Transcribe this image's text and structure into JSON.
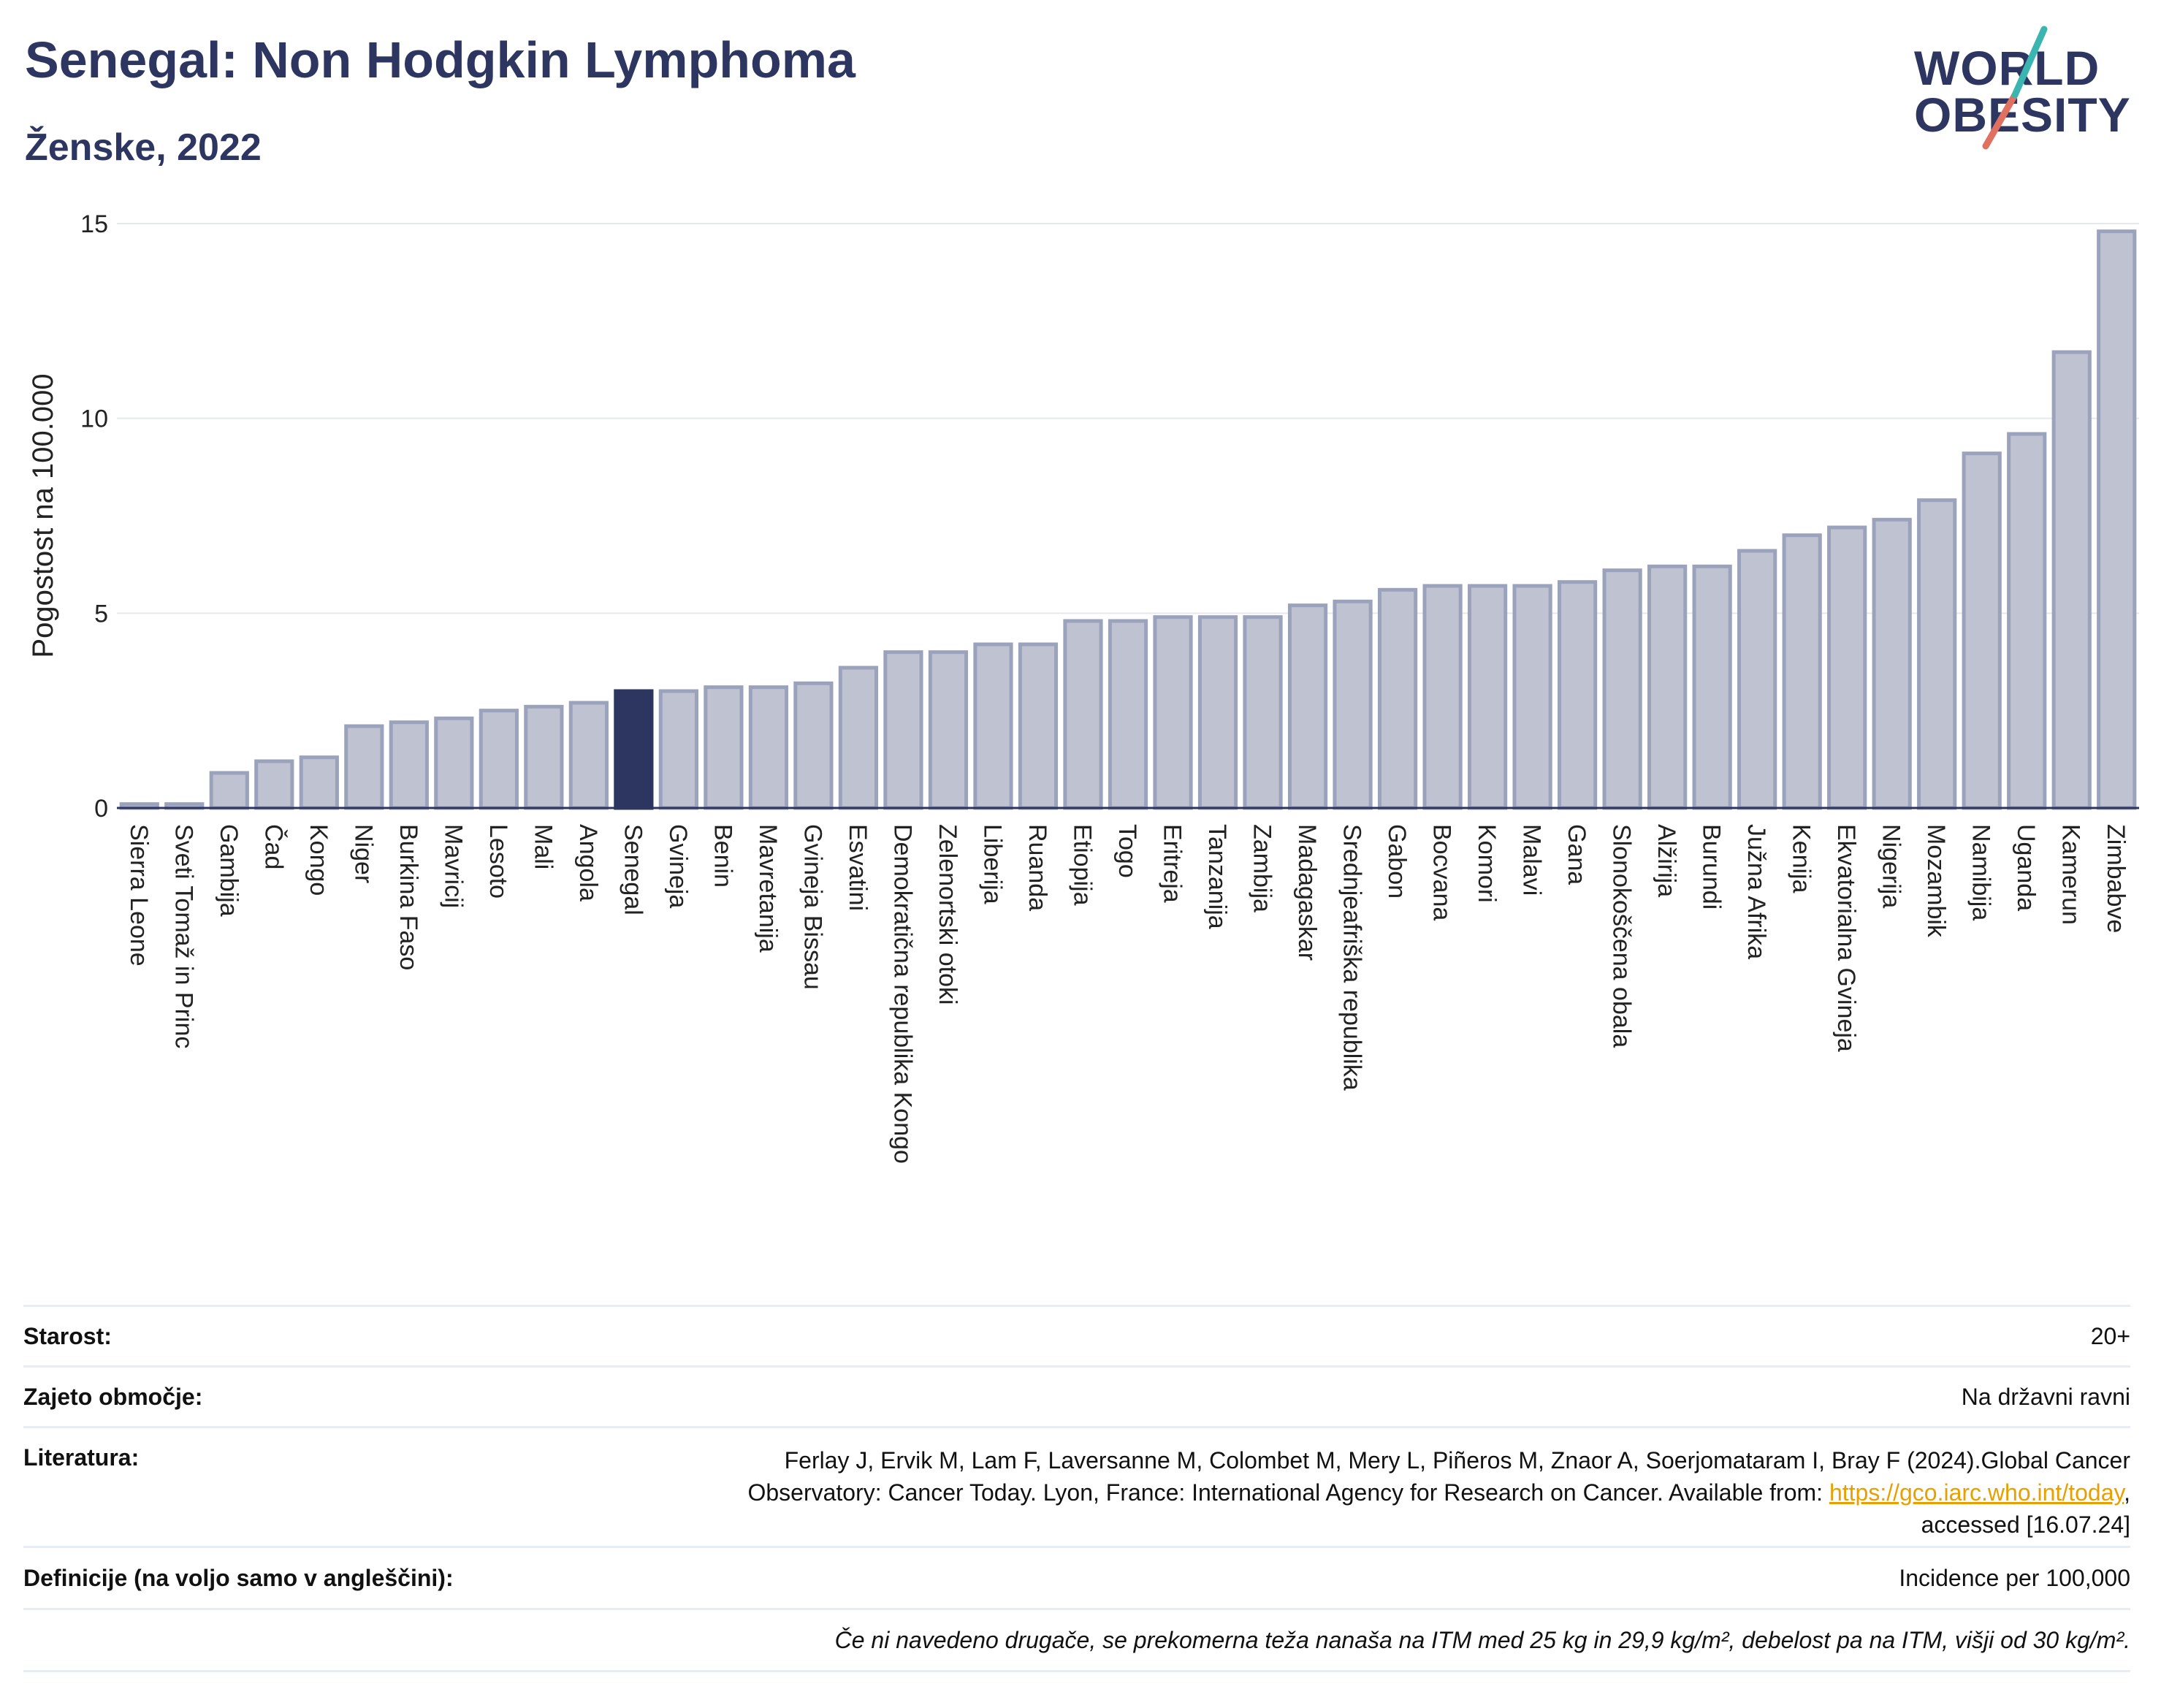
{
  "header": {
    "title": "Senegal: Non Hodgkin Lymphoma",
    "subtitle": "Ženske, 2022"
  },
  "logo": {
    "line1": "WORLD",
    "line2": "OBESITY"
  },
  "colors": {
    "bar": "#bfc3d1",
    "bar_stroke": "#9ba2bb",
    "highlight": "#2d3561",
    "title": "#2d3561"
  },
  "chart_data": {
    "type": "bar",
    "ylabel": "Pogostost na 100.000",
    "ylim": [
      0,
      15
    ],
    "yticks": [
      0,
      5,
      10,
      15
    ],
    "grid": true,
    "highlight": "Senegal",
    "categories": [
      "Sierra Leone",
      "Sveti Tomaž in Princ",
      "Gambija",
      "Čad",
      "Kongo",
      "Niger",
      "Burkina Faso",
      "Mavricij",
      "Lesoto",
      "Mali",
      "Angola",
      "Senegal",
      "Gvineja",
      "Benin",
      "Mavretanija",
      "Gvineja Bissau",
      "Esvatini",
      "Demokratična republika Kongo",
      "Zelenortski otoki",
      "Liberija",
      "Ruanda",
      "Etiopija",
      "Togo",
      "Eritreja",
      "Tanzanija",
      "Zambija",
      "Madagaskar",
      "Srednjeafriška republika",
      "Gabon",
      "Bocvana",
      "Komori",
      "Malavi",
      "Gana",
      "Slonokoščena obala",
      "Alžirija",
      "Burundi",
      "Južna Afrika",
      "Kenija",
      "Ekvatorialna Gvineja",
      "Nigerija",
      "Mozambik",
      "Namibija",
      "Uganda",
      "Kamerun",
      "Zimbabve"
    ],
    "values": [
      0.1,
      0.1,
      0.9,
      1.2,
      1.3,
      2.1,
      2.2,
      2.3,
      2.5,
      2.6,
      2.7,
      3.0,
      3.0,
      3.1,
      3.1,
      3.2,
      3.6,
      4.0,
      4.0,
      4.2,
      4.2,
      4.8,
      4.8,
      4.9,
      4.9,
      4.9,
      5.2,
      5.3,
      5.6,
      5.7,
      5.7,
      5.7,
      5.8,
      6.1,
      6.2,
      6.2,
      6.6,
      7.0,
      7.2,
      7.4,
      7.9,
      9.1,
      9.6,
      11.7,
      14.8
    ]
  },
  "info": {
    "age_label": "Starost:",
    "age_value": "20+",
    "coverage_label": "Zajeto območje:",
    "coverage_value": "Na državni ravni",
    "lit_label": "Literatura:",
    "lit_line1": "Ferlay J, Ervik M, Lam F, Laversanne M, Colombet M, Mery L, Piñeros M, Znaor A, Soerjomataram I, Bray F (2024).Global Cancer",
    "lit_line2_pre": "Observatory: Cancer Today. Lyon, France: International Agency for Research on Cancer. Available from: ",
    "lit_link": "https://gco.iarc.who.int/today",
    "lit_line2_post": ",",
    "lit_line3": "accessed [16.07.24]",
    "def_label": "Definicije (na voljo samo v angleščini):",
    "def_value": "Incidence per 100,000",
    "note": "Če ni navedeno drugače, se prekomerna teža nanaša na ITM med 25 kg in 29,9 kg/m², debelost pa na ITM, višji od 30 kg/m²."
  }
}
